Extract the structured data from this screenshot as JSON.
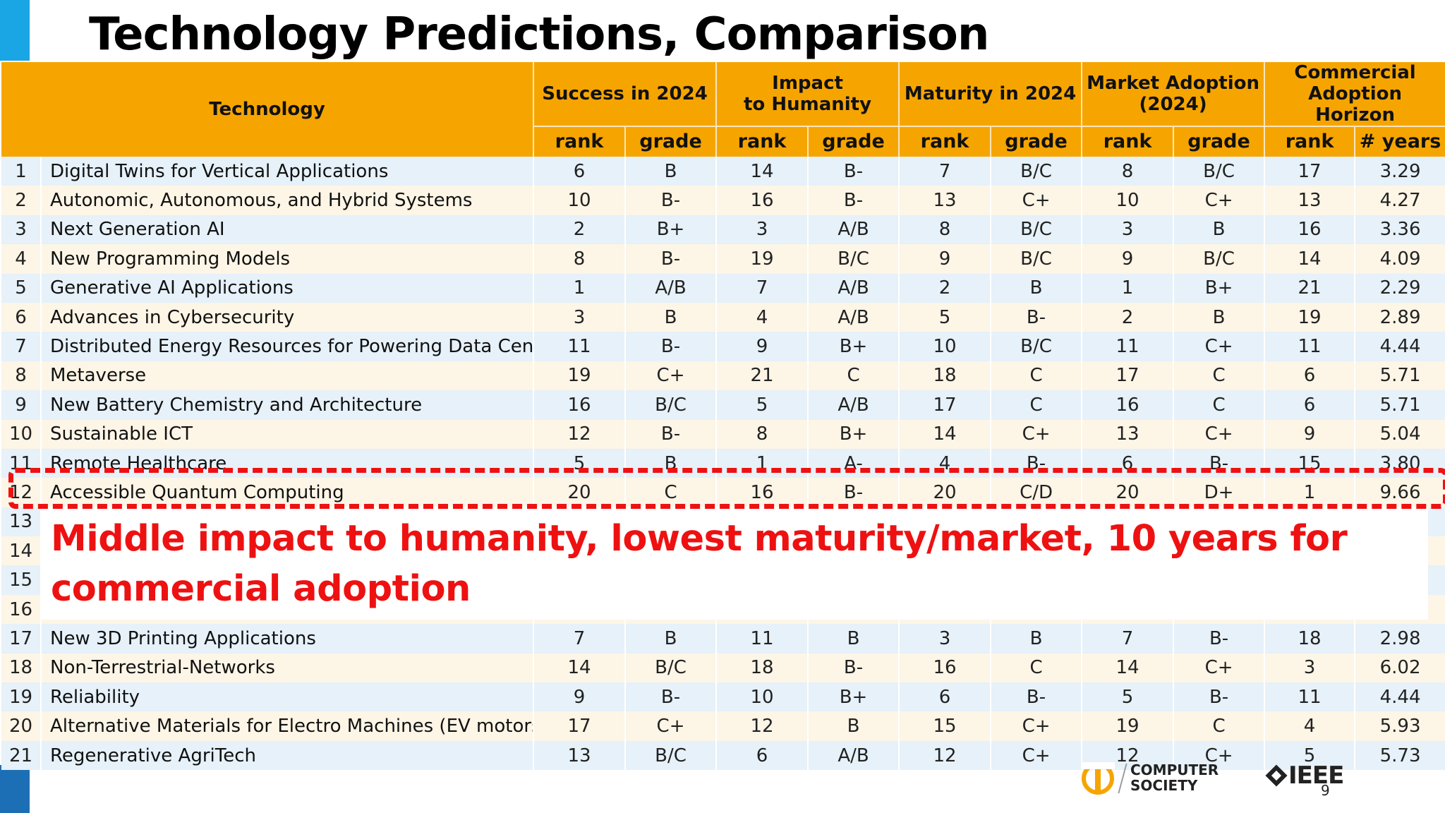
{
  "slide": {
    "title": "Technology Predictions, Comparison",
    "page_number": "9",
    "callout": "Middle impact to humanity, lowest maturity/market, 10 years for commercial adoption",
    "accent_color": "#f6a500",
    "highlight_color": "#ee1111"
  },
  "table": {
    "technology_header": "Technology",
    "groups": [
      {
        "label": "Success in 2024",
        "cols": [
          "rank",
          "grade"
        ]
      },
      {
        "label": "Impact\nto Humanity",
        "cols": [
          "rank",
          "grade"
        ]
      },
      {
        "label": "Maturity in 2024",
        "cols": [
          "rank",
          "grade"
        ]
      },
      {
        "label": "Market Adoption\n(2024)",
        "cols": [
          "rank",
          "grade"
        ]
      },
      {
        "label": "Commercial\nAdoption Horizon",
        "cols": [
          "rank",
          "# years"
        ]
      }
    ],
    "rows": [
      {
        "num": "1",
        "tech": "Digital Twins for Vertical Applications",
        "cells": [
          "6",
          "B",
          "14",
          "B-",
          "7",
          "B/C",
          "8",
          "B/C",
          "17",
          "3.29"
        ]
      },
      {
        "num": "2",
        "tech": "Autonomic, Autonomous, and Hybrid Systems",
        "cells": [
          "10",
          "B-",
          "16",
          "B-",
          "13",
          "C+",
          "10",
          "C+",
          "13",
          "4.27"
        ]
      },
      {
        "num": "3",
        "tech": "Next Generation AI",
        "cells": [
          "2",
          "B+",
          "3",
          "A/B",
          "8",
          "B/C",
          "3",
          "B",
          "16",
          "3.36"
        ]
      },
      {
        "num": "4",
        "tech": "New Programming Models",
        "cells": [
          "8",
          "B-",
          "19",
          "B/C",
          "9",
          "B/C",
          "9",
          "B/C",
          "14",
          "4.09"
        ]
      },
      {
        "num": "5",
        "tech": "Generative AI Applications",
        "cells": [
          "1",
          "A/B",
          "7",
          "A/B",
          "2",
          "B",
          "1",
          "B+",
          "21",
          "2.29"
        ]
      },
      {
        "num": "6",
        "tech": "Advances in Cybersecurity",
        "cells": [
          "3",
          "B",
          "4",
          "A/B",
          "5",
          "B-",
          "2",
          "B",
          "19",
          "2.89"
        ]
      },
      {
        "num": "7",
        "tech": "Distributed Energy Resources for Powering Data Centers",
        "cells": [
          "11",
          "B-",
          "9",
          "B+",
          "10",
          "B/C",
          "11",
          "C+",
          "11",
          "4.44"
        ]
      },
      {
        "num": "8",
        "tech": "Metaverse",
        "cells": [
          "19",
          "C+",
          "21",
          "C",
          "18",
          "C",
          "17",
          "C",
          "6",
          "5.71"
        ]
      },
      {
        "num": "9",
        "tech": "New Battery Chemistry and Architecture",
        "cells": [
          "16",
          "B/C",
          "5",
          "A/B",
          "17",
          "C",
          "16",
          "C",
          "6",
          "5.71"
        ]
      },
      {
        "num": "10",
        "tech": "Sustainable ICT",
        "cells": [
          "12",
          "B-",
          "8",
          "B+",
          "14",
          "C+",
          "13",
          "C+",
          "9",
          "5.04"
        ]
      },
      {
        "num": "11",
        "tech": "Remote Healthcare",
        "cells": [
          "5",
          "B",
          "1",
          "A-",
          "4",
          "B-",
          "6",
          "B-",
          "15",
          "3.80"
        ]
      },
      {
        "num": "12",
        "tech": "Accessible Quantum Computing",
        "cells": [
          "20",
          "C",
          "16",
          "B-",
          "20",
          "C/D",
          "20",
          "D+",
          "1",
          "9.66"
        ]
      },
      {
        "num": "13",
        "tech": "",
        "cells": [
          "",
          "",
          "",
          "",
          "",
          "",
          "",
          "",
          "",
          ""
        ]
      },
      {
        "num": "14",
        "tech": "",
        "cells": [
          "",
          "",
          "",
          "",
          "",
          "",
          "",
          "",
          "",
          ""
        ]
      },
      {
        "num": "15",
        "tech": "",
        "cells": [
          "",
          "",
          "",
          "",
          "",
          "",
          "",
          "",
          "",
          ""
        ]
      },
      {
        "num": "16",
        "tech": "",
        "cells": [
          "",
          "",
          "",
          "",
          "",
          "",
          "",
          "",
          "",
          ""
        ]
      },
      {
        "num": "17",
        "tech": "New 3D Printing Applications",
        "cells": [
          "7",
          "B",
          "11",
          "B",
          "3",
          "B",
          "7",
          "B-",
          "18",
          "2.98"
        ]
      },
      {
        "num": "18",
        "tech": "Non-Terrestrial-Networks",
        "cells": [
          "14",
          "B/C",
          "18",
          "B-",
          "16",
          "C",
          "14",
          "C+",
          "3",
          "6.02"
        ]
      },
      {
        "num": "19",
        "tech": "Reliability",
        "cells": [
          "9",
          "B-",
          "10",
          "B+",
          "6",
          "B-",
          "5",
          "B-",
          "11",
          "4.44"
        ]
      },
      {
        "num": "20",
        "tech": "Alternative Materials for Electro Machines (EV motors)",
        "cells": [
          "17",
          "C+",
          "12",
          "B",
          "15",
          "C+",
          "19",
          "C",
          "4",
          "5.93"
        ]
      },
      {
        "num": "21",
        "tech": "Regenerative AgriTech",
        "cells": [
          "13",
          "B/C",
          "6",
          "A/B",
          "12",
          "C+",
          "12",
          "C+",
          "5",
          "5.73"
        ]
      }
    ]
  },
  "logos": {
    "computer_society": "COMPUTER\nSOCIETY",
    "ieee": "IEEE",
    "computer_society_icon": "computer-society-logo-icon",
    "ieee_icon": "ieee-diamond-icon"
  }
}
